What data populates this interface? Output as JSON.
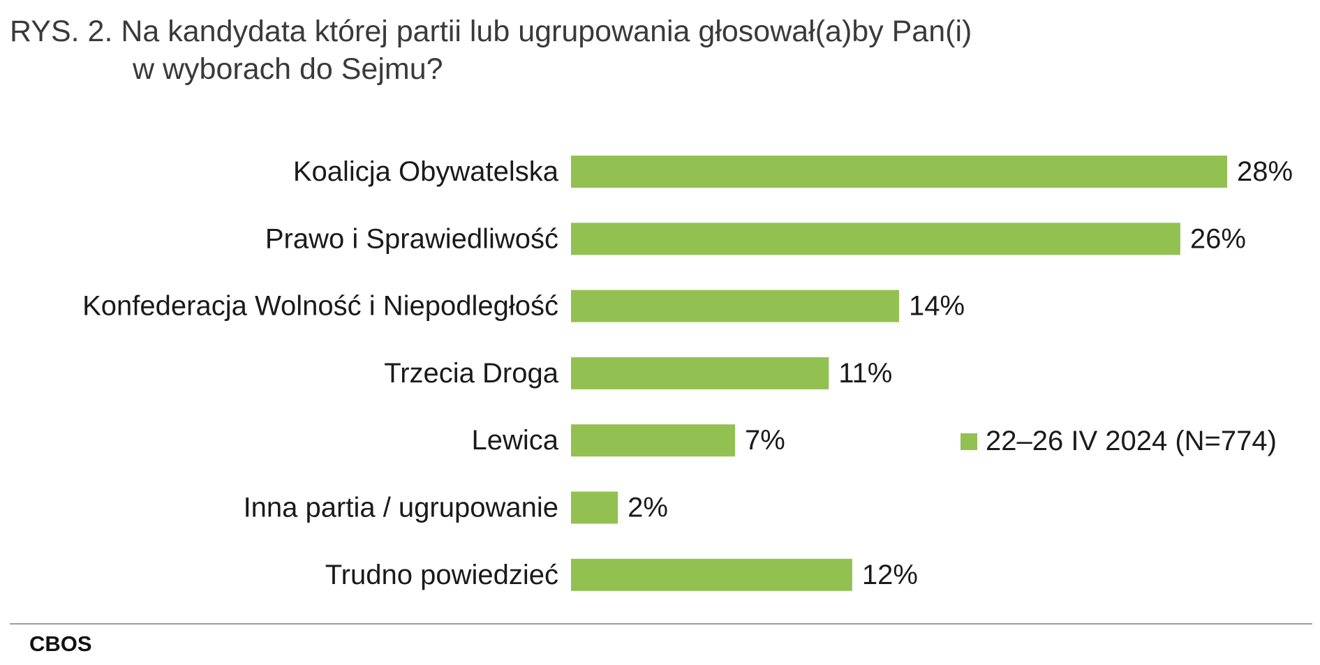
{
  "title": {
    "line1": "RYS. 2. Na kandydata której partii lub ugrupowania głosował(a)by Pan(i)",
    "line2": "w wyborach do Sejmu?"
  },
  "chart_data": {
    "type": "bar",
    "orientation": "horizontal",
    "categories": [
      "Koalicja Obywatelska",
      "Prawo i Sprawiedliwość",
      "Konfederacja Wolność i Niepodległość",
      "Trzecia Droga",
      "Lewica",
      "Inna partia / ugrupowanie",
      "Trudno powiedzieć"
    ],
    "series": [
      {
        "name": "22–26 IV 2024 (N=774)",
        "values": [
          28,
          26,
          14,
          11,
          7,
          2,
          12
        ],
        "value_labels": [
          "28%",
          "26%",
          "14%",
          "11%",
          "7%",
          "2%",
          "12%"
        ],
        "color": "#92c051"
      }
    ],
    "xlim": [
      0,
      28
    ],
    "grid": false,
    "legend_position": "right",
    "title": "RYS. 2. Na kandydata której partii lub ugrupowania głosował(a)by Pan(i) w wyborach do Sejmu?"
  },
  "legend": {
    "label": "22–26 IV 2024 (N=774)",
    "color": "#92c051"
  },
  "source": "CBOS"
}
